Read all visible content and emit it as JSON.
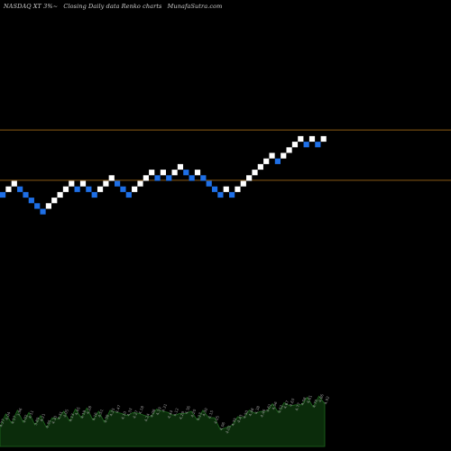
{
  "header": {
    "ticker": "NASDAQ XT 3%~",
    "chart_kind": "Closing Daily data  Renko  charts",
    "site": "MunafaSutra.com"
  },
  "colors": {
    "background": "#000000",
    "up_brick": "#ffffff",
    "down_brick": "#1e6fe6",
    "level_line": "#8a5a14",
    "volume_fill": "#0b2c0b",
    "volume_line": "#1f6a1f",
    "volume_label": "#9a9a9a"
  },
  "chart_data": {
    "type": "renko",
    "bricks": [
      {
        "v": 0,
        "d": "down"
      },
      {
        "v": 1,
        "d": "up"
      },
      {
        "v": 2,
        "d": "up"
      },
      {
        "v": 1,
        "d": "down"
      },
      {
        "v": 0,
        "d": "down"
      },
      {
        "v": -1,
        "d": "down"
      },
      {
        "v": -2,
        "d": "down"
      },
      {
        "v": -3,
        "d": "down"
      },
      {
        "v": -2,
        "d": "up"
      },
      {
        "v": -1,
        "d": "up"
      },
      {
        "v": 0,
        "d": "up"
      },
      {
        "v": 1,
        "d": "up"
      },
      {
        "v": 2,
        "d": "up"
      },
      {
        "v": 1,
        "d": "down"
      },
      {
        "v": 2,
        "d": "up"
      },
      {
        "v": 1,
        "d": "down"
      },
      {
        "v": 0,
        "d": "down"
      },
      {
        "v": 1,
        "d": "up"
      },
      {
        "v": 2,
        "d": "up"
      },
      {
        "v": 3,
        "d": "up"
      },
      {
        "v": 2,
        "d": "down"
      },
      {
        "v": 1,
        "d": "down"
      },
      {
        "v": 0,
        "d": "down"
      },
      {
        "v": 1,
        "d": "up"
      },
      {
        "v": 2,
        "d": "up"
      },
      {
        "v": 3,
        "d": "up"
      },
      {
        "v": 4,
        "d": "up"
      },
      {
        "v": 3,
        "d": "down"
      },
      {
        "v": 4,
        "d": "up"
      },
      {
        "v": 3,
        "d": "down"
      },
      {
        "v": 4,
        "d": "up"
      },
      {
        "v": 5,
        "d": "up"
      },
      {
        "v": 4,
        "d": "down"
      },
      {
        "v": 3,
        "d": "down"
      },
      {
        "v": 4,
        "d": "up"
      },
      {
        "v": 3,
        "d": "down"
      },
      {
        "v": 2,
        "d": "down"
      },
      {
        "v": 1,
        "d": "down"
      },
      {
        "v": 0,
        "d": "down"
      },
      {
        "v": 1,
        "d": "up"
      },
      {
        "v": 0,
        "d": "down"
      },
      {
        "v": 1,
        "d": "up"
      },
      {
        "v": 2,
        "d": "up"
      },
      {
        "v": 3,
        "d": "up"
      },
      {
        "v": 4,
        "d": "up"
      },
      {
        "v": 5,
        "d": "up"
      },
      {
        "v": 6,
        "d": "up"
      },
      {
        "v": 7,
        "d": "up"
      },
      {
        "v": 6,
        "d": "down"
      },
      {
        "v": 7,
        "d": "up"
      },
      {
        "v": 8,
        "d": "up"
      },
      {
        "v": 9,
        "d": "up"
      },
      {
        "v": 10,
        "d": "up"
      },
      {
        "v": 9,
        "d": "down"
      },
      {
        "v": 10,
        "d": "up"
      },
      {
        "v": 9,
        "d": "down"
      },
      {
        "v": 10,
        "d": "up"
      }
    ],
    "level_lines": [
      {
        "name": "upper",
        "v": 11.6
      },
      {
        "name": "lower",
        "v": 2.6
      }
    ],
    "volume": [
      0.42,
      0.55,
      0.48,
      0.62,
      0.5,
      0.58,
      0.45,
      0.52,
      0.4,
      0.48,
      0.56,
      0.6,
      0.52,
      0.64,
      0.58,
      0.66,
      0.54,
      0.6,
      0.5,
      0.62,
      0.68,
      0.56,
      0.62,
      0.58,
      0.66,
      0.52,
      0.6,
      0.64,
      0.7,
      0.58,
      0.62,
      0.56,
      0.66,
      0.6,
      0.54,
      0.62,
      0.58,
      0.48,
      0.36,
      0.3,
      0.44,
      0.5,
      0.58,
      0.62,
      0.66,
      0.6,
      0.7,
      0.74,
      0.68,
      0.76,
      0.8,
      0.72,
      0.82,
      0.86,
      0.78,
      0.88,
      0.84
    ],
    "volume_labels": [
      "4.27",
      "4.04",
      "4.17",
      "3.96",
      "4.02",
      "4.11",
      "3.89",
      "4.21",
      "4.35",
      "4.30",
      "4.31",
      "4.05",
      "4.13",
      "4.45",
      "4.19",
      "4.28",
      "4.16",
      "4.51",
      "4.38",
      "4.25",
      "4.47",
      "4.10",
      "4.33",
      "4.27",
      "4.18",
      "4.24",
      "4.08",
      "4.19",
      "4.31",
      "4.44",
      "4.12",
      "4.29",
      "4.36",
      "4.20",
      "4.23",
      "4.30",
      "4.15",
      "4.05",
      "4.06",
      "4.02",
      "4.35",
      "4.43",
      "4.50",
      "4.48",
      "4.38",
      "4.46",
      "4.61",
      "4.56",
      "4.52",
      "4.67",
      "4.63",
      "4.77",
      "4.58",
      "4.81",
      "4.70",
      "4.86",
      "4.92"
    ]
  }
}
